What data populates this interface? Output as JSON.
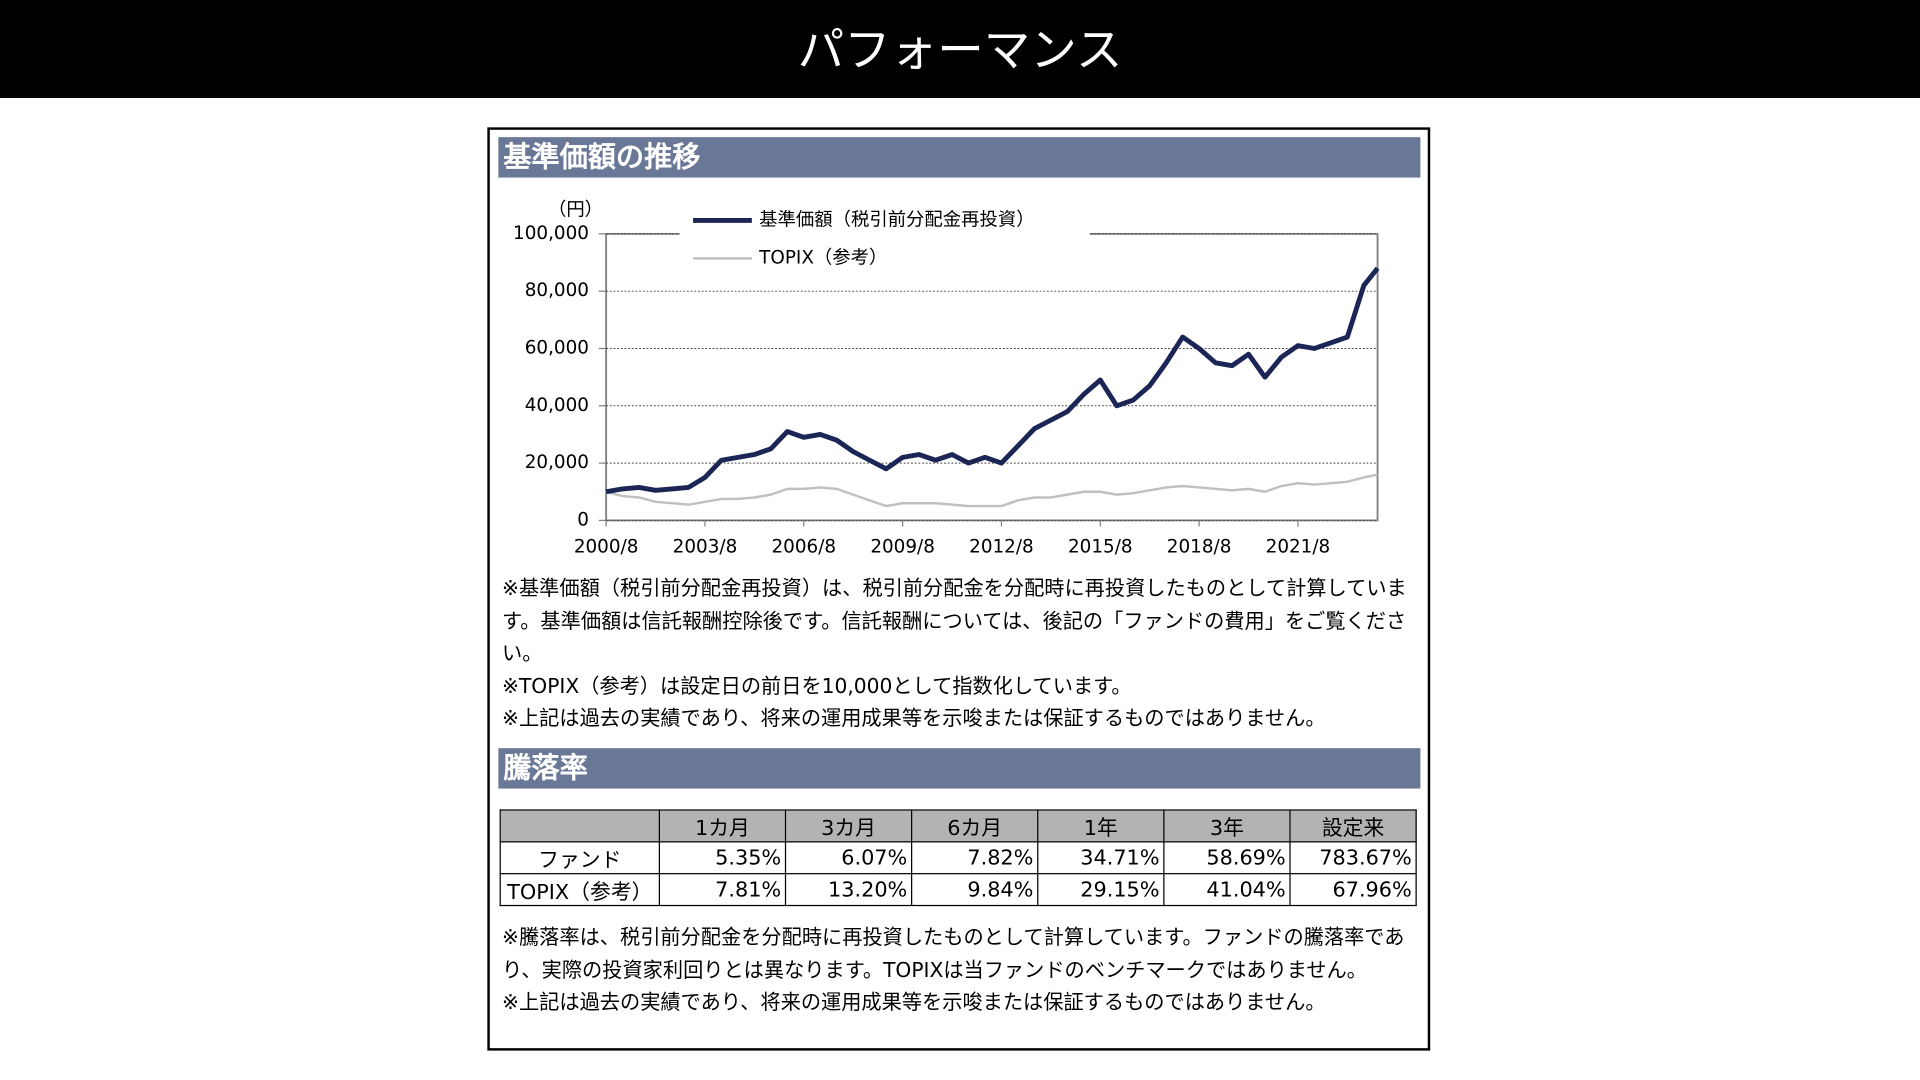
{
  "header": {
    "title": "パフォーマンス"
  },
  "sections": {
    "chart": "基準価額の推移",
    "returns": "騰落率"
  },
  "chart_data": {
    "type": "line",
    "y_label": "（円）",
    "x": [
      "2000/8",
      "2001/2",
      "2001/8",
      "2002/2",
      "2002/8",
      "2003/2",
      "2003/8",
      "2004/2",
      "2004/8",
      "2005/2",
      "2005/8",
      "2006/2",
      "2006/8",
      "2007/2",
      "2007/8",
      "2008/2",
      "2008/8",
      "2009/2",
      "2009/8",
      "2010/2",
      "2010/8",
      "2011/2",
      "2011/8",
      "2012/2",
      "2012/8",
      "2013/2",
      "2013/8",
      "2014/2",
      "2014/8",
      "2015/2",
      "2015/8",
      "2016/2",
      "2016/8",
      "2017/2",
      "2017/8",
      "2018/2",
      "2018/8",
      "2019/2",
      "2019/8",
      "2020/2",
      "2020/8",
      "2021/2",
      "2021/8",
      "2022/2",
      "2022/8",
      "2023/2",
      "2023/8",
      "2024/1"
    ],
    "series": [
      {
        "name": "基準価額（税引前分配金再投資）",
        "color": "#1b2656",
        "values": [
          10000,
          11000,
          11500,
          10500,
          11000,
          11500,
          15000,
          21000,
          22000,
          23000,
          25000,
          31000,
          29000,
          30000,
          28000,
          24000,
          21000,
          18000,
          22000,
          23000,
          21000,
          23000,
          20000,
          22000,
          20000,
          26000,
          32000,
          35000,
          38000,
          44000,
          49000,
          40000,
          42000,
          47000,
          55000,
          64000,
          60000,
          55000,
          54000,
          58000,
          50000,
          57000,
          61000,
          60000,
          62000,
          64000,
          82000,
          88000
        ]
      },
      {
        "name": "TOPIX（参考）",
        "color": "#c0c0c0",
        "values": [
          10000,
          8500,
          8000,
          6500,
          6000,
          5500,
          6500,
          7500,
          7500,
          8000,
          9000,
          11000,
          11000,
          11500,
          11000,
          9000,
          7000,
          5000,
          6000,
          6000,
          6000,
          5500,
          5000,
          5000,
          5000,
          7000,
          8000,
          8000,
          9000,
          10000,
          10000,
          9000,
          9500,
          10500,
          11500,
          12000,
          11500,
          11000,
          10500,
          11000,
          10000,
          12000,
          13000,
          12500,
          13000,
          13500,
          15000,
          16000
        ]
      }
    ],
    "xlim": [
      "2000/8",
      "2024/1"
    ],
    "xticks": [
      "2000/8",
      "2003/8",
      "2006/8",
      "2009/8",
      "2012/8",
      "2015/8",
      "2018/8",
      "2021/8"
    ],
    "ylim": [
      0,
      100000
    ],
    "yticks": [
      0,
      {
        "value": 20000,
        "label": "20,000"
      },
      {
        "value": 40000,
        "label": "40,000"
      },
      {
        "value": 60000,
        "label": "60,000"
      },
      {
        "value": 80000,
        "label": "80,000"
      },
      {
        "value": 100000,
        "label": "100,000"
      }
    ],
    "grid": true
  },
  "chart_notes": [
    "※基準価額（税引前分配金再投資）は、税引前分配金を分配時に再投資したものとして計算しています。基準価額は信託報酬控除後です。信託報酬については、後記の「ファンドの費用」をご覧ください。",
    "※TOPIX（参考）は設定日の前日を10,000として指数化しています。",
    "※上記は過去の実績であり、将来の運用成果等を示唆または保証するものではありません。"
  ],
  "table": {
    "columns": [
      "1カ月",
      "3カ月",
      "6カ月",
      "1年",
      "3年",
      "設定来"
    ],
    "rows": [
      {
        "label": "ファンド",
        "values": [
          "5.35%",
          "6.07%",
          "7.82%",
          "34.71%",
          "58.69%",
          "783.67%"
        ]
      },
      {
        "label": "TOPIX（参考）",
        "values": [
          "7.81%",
          "13.20%",
          "9.84%",
          "29.15%",
          "41.04%",
          "67.96%"
        ]
      }
    ]
  },
  "table_notes": [
    "※騰落率は、税引前分配金を分配時に再投資したものとして計算しています。ファンドの騰落率であり、実際の投資家利回りとは異なります。TOPIXは当ファンドのベンチマークではありません。",
    "※上記は過去の実績であり、将来の運用成果等を示唆または保証するものではありません。"
  ]
}
